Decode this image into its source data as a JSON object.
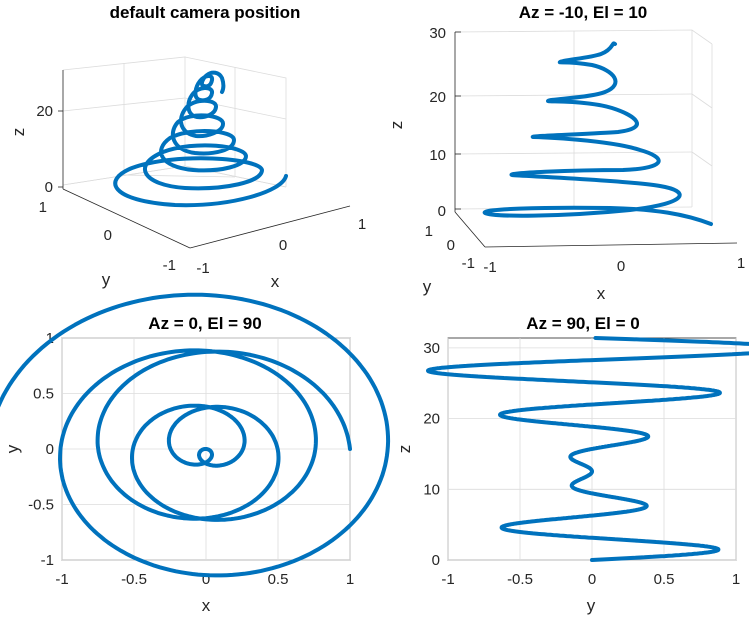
{
  "style": {
    "line_color": "#0072BD",
    "grid": true
  },
  "chart_data": [
    {
      "type": "line",
      "subtype": "3d-helix",
      "title": "default camera position",
      "xlabel": "x",
      "ylabel": "y",
      "zlabel": "z",
      "xticks": [
        "-1",
        "0",
        "1"
      ],
      "yticks": [
        "-1",
        "0",
        "1"
      ],
      "zticks": [
        "0",
        "20"
      ],
      "xlim": [
        -1,
        1
      ],
      "ylim": [
        -1,
        1
      ],
      "zlim": [
        0,
        31.4
      ],
      "view": {
        "az": -37.5,
        "el": 30
      },
      "curve": {
        "x": "(1 - 0.08 t) cos(t)",
        "y": "(1 - 0.08 t) sin(t)",
        "z": "t",
        "t_range": [
          0,
          31.4
        ]
      }
    },
    {
      "type": "line",
      "subtype": "3d-helix",
      "title": "Az = -10, El = 10",
      "xlabel": "x",
      "ylabel": "y",
      "zlabel": "z",
      "xticks": [
        "-1",
        "0",
        "1"
      ],
      "yticks": [
        "-1",
        "0",
        "1"
      ],
      "zticks": [
        "0",
        "10",
        "20",
        "30"
      ],
      "xlim": [
        -1,
        1
      ],
      "ylim": [
        -1,
        1
      ],
      "zlim": [
        0,
        31.4
      ],
      "view": {
        "az": -10,
        "el": 10
      },
      "curve": {
        "x": "(1 - 0.08 t) cos(t)",
        "y": "(1 - 0.08 t) sin(t)",
        "z": "t",
        "t_range": [
          0,
          31.4
        ]
      }
    },
    {
      "type": "line",
      "subtype": "spiral",
      "title": "Az = 0, El = 90",
      "xlabel": "x",
      "ylabel": "y",
      "xticks": [
        "-1",
        "-0.5",
        "0",
        "0.5",
        "1"
      ],
      "yticks": [
        "-1",
        "-0.5",
        "0",
        "0.5",
        "1"
      ],
      "xlim": [
        -1,
        1
      ],
      "ylim": [
        -1,
        1
      ],
      "view": {
        "az": 0,
        "el": 90
      },
      "curve": {
        "x": "(1 - 0.08 t) cos(t)",
        "y": "(1 - 0.08 t) sin(t)",
        "t_range": [
          0,
          31.4
        ]
      }
    },
    {
      "type": "line",
      "subtype": "zigzag",
      "title": "Az = 90, El = 0",
      "xlabel": "y",
      "ylabel": "z",
      "xticks": [
        "-1",
        "-0.5",
        "0",
        "0.5",
        "1"
      ],
      "yticks": [
        "0",
        "10",
        "20",
        "30"
      ],
      "xlim": [
        -1,
        1
      ],
      "ylim": [
        0,
        31.4
      ],
      "view": {
        "az": 90,
        "el": 0
      },
      "curve": {
        "x": "(1 - 0.08 t) sin(t)",
        "y": "t",
        "t_range": [
          0,
          31.4
        ]
      }
    }
  ]
}
